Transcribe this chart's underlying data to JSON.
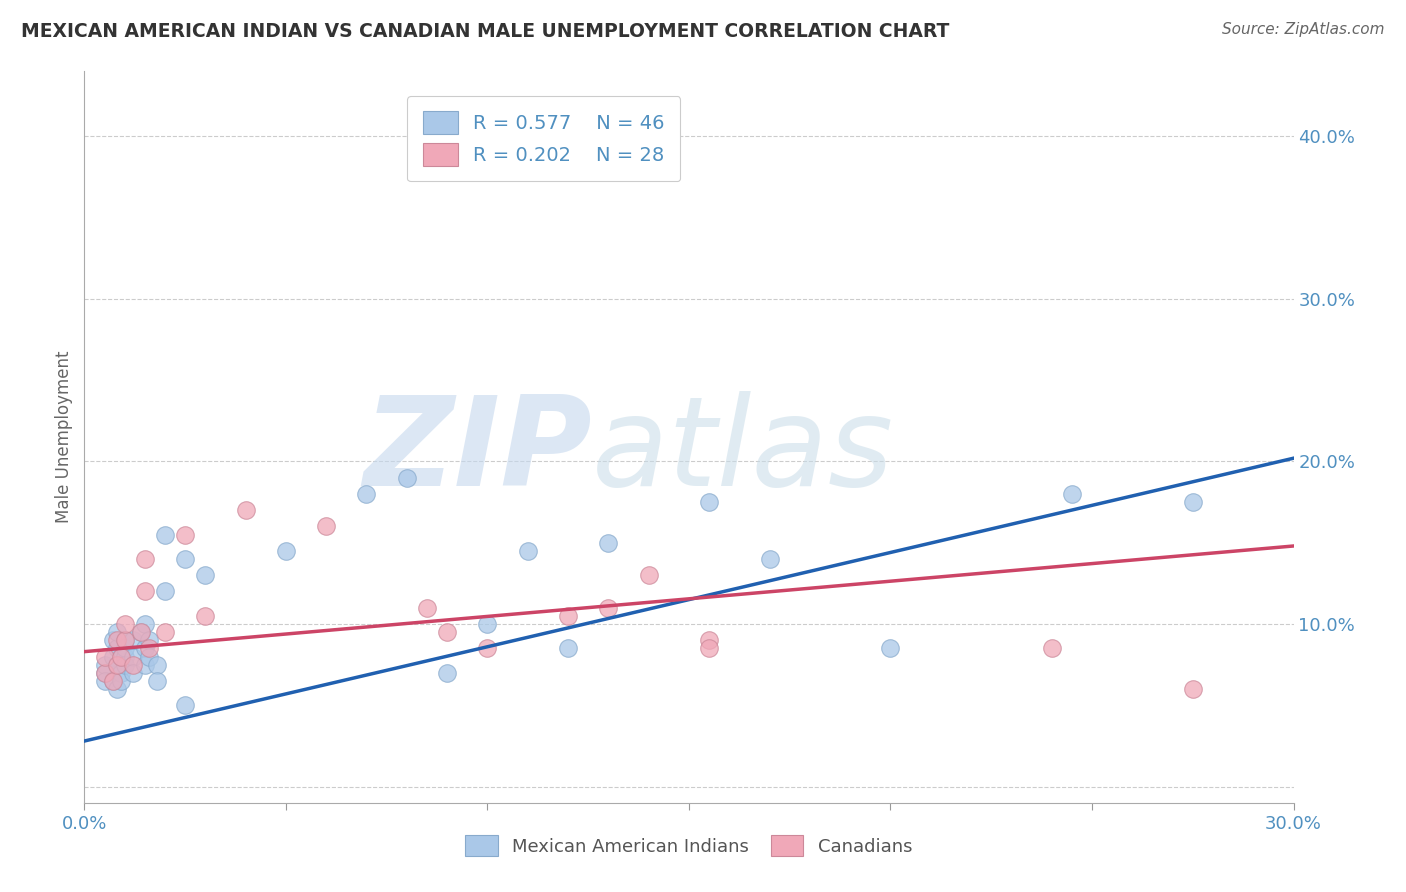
{
  "title": "MEXICAN AMERICAN INDIAN VS CANADIAN MALE UNEMPLOYMENT CORRELATION CHART",
  "source": "Source: ZipAtlas.com",
  "ylabel": "Male Unemployment",
  "xlim": [
    0.0,
    0.3
  ],
  "ylim": [
    -0.01,
    0.44
  ],
  "blue_R": 0.577,
  "blue_N": 46,
  "pink_R": 0.202,
  "pink_N": 28,
  "blue_color": "#aac8e8",
  "blue_edge_color": "#88aacc",
  "blue_line_color": "#2060b0",
  "pink_color": "#f0a8b8",
  "pink_edge_color": "#cc8899",
  "pink_line_color": "#cc4466",
  "legend_label_blue": "Mexican American Indians",
  "legend_label_pink": "Canadians",
  "watermark_zip": "ZIP",
  "watermark_atlas": "atlas",
  "watermark_color": "#d0dff0",
  "background_color": "#ffffff",
  "grid_color": "#cccccc",
  "title_color": "#333333",
  "axis_color": "#5090c0",
  "blue_line_x": [
    0.0,
    0.3
  ],
  "blue_line_y": [
    0.028,
    0.202
  ],
  "pink_line_x": [
    0.0,
    0.3
  ],
  "pink_line_y": [
    0.083,
    0.148
  ],
  "blue_scatter_x": [
    0.005,
    0.005,
    0.005,
    0.007,
    0.007,
    0.007,
    0.008,
    0.008,
    0.008,
    0.008,
    0.009,
    0.009,
    0.009,
    0.01,
    0.01,
    0.01,
    0.01,
    0.012,
    0.012,
    0.012,
    0.014,
    0.015,
    0.015,
    0.015,
    0.016,
    0.016,
    0.018,
    0.018,
    0.02,
    0.02,
    0.025,
    0.025,
    0.03,
    0.05,
    0.07,
    0.08,
    0.09,
    0.1,
    0.11,
    0.12,
    0.13,
    0.155,
    0.17,
    0.2,
    0.245,
    0.275
  ],
  "blue_scatter_y": [
    0.07,
    0.075,
    0.065,
    0.08,
    0.09,
    0.065,
    0.075,
    0.085,
    0.095,
    0.06,
    0.07,
    0.08,
    0.065,
    0.08,
    0.085,
    0.09,
    0.075,
    0.08,
    0.09,
    0.07,
    0.095,
    0.1,
    0.085,
    0.075,
    0.09,
    0.08,
    0.075,
    0.065,
    0.12,
    0.155,
    0.14,
    0.05,
    0.13,
    0.145,
    0.18,
    0.19,
    0.07,
    0.1,
    0.145,
    0.085,
    0.15,
    0.175,
    0.14,
    0.085,
    0.18,
    0.175
  ],
  "pink_scatter_x": [
    0.005,
    0.005,
    0.007,
    0.008,
    0.008,
    0.009,
    0.01,
    0.01,
    0.012,
    0.014,
    0.015,
    0.015,
    0.016,
    0.02,
    0.025,
    0.03,
    0.04,
    0.06,
    0.085,
    0.09,
    0.1,
    0.12,
    0.13,
    0.14,
    0.155,
    0.155,
    0.24,
    0.275
  ],
  "pink_scatter_y": [
    0.07,
    0.08,
    0.065,
    0.075,
    0.09,
    0.08,
    0.09,
    0.1,
    0.075,
    0.095,
    0.12,
    0.14,
    0.085,
    0.095,
    0.155,
    0.105,
    0.17,
    0.16,
    0.11,
    0.095,
    0.085,
    0.105,
    0.11,
    0.13,
    0.09,
    0.085,
    0.085,
    0.06
  ]
}
